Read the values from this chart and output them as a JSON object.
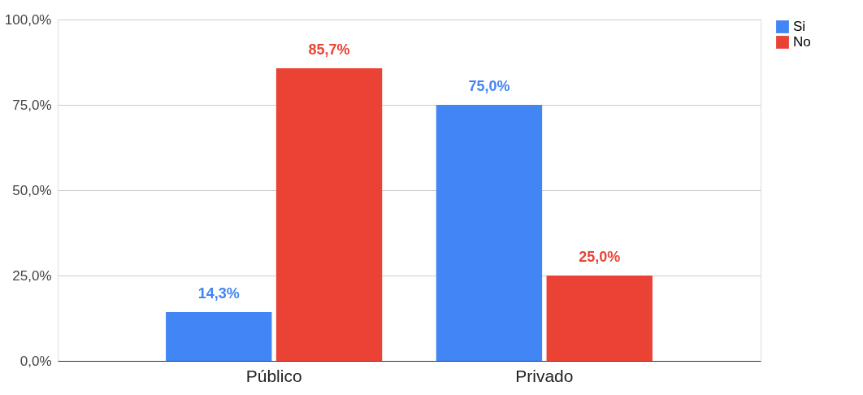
{
  "chart_data": {
    "type": "bar",
    "categories": [
      "Público",
      "Privado"
    ],
    "series": [
      {
        "name": "Si",
        "color": "#4285f4",
        "values": [
          14.3,
          75.0
        ],
        "value_labels": [
          "14,3%",
          "75,0%"
        ]
      },
      {
        "name": "No",
        "color": "#ea4335",
        "values": [
          85.7,
          25.0
        ],
        "value_labels": [
          "85,7%",
          "25,0%"
        ]
      }
    ],
    "ylim": [
      0,
      100
    ],
    "yticks": [
      {
        "value": 0,
        "label": "0,0%"
      },
      {
        "value": 25,
        "label": "25,0%"
      },
      {
        "value": 50,
        "label": "50,0%"
      },
      {
        "value": 75,
        "label": "75,0%"
      },
      {
        "value": 100,
        "label": "100,0%"
      }
    ],
    "grid": "y",
    "legend": "right"
  }
}
